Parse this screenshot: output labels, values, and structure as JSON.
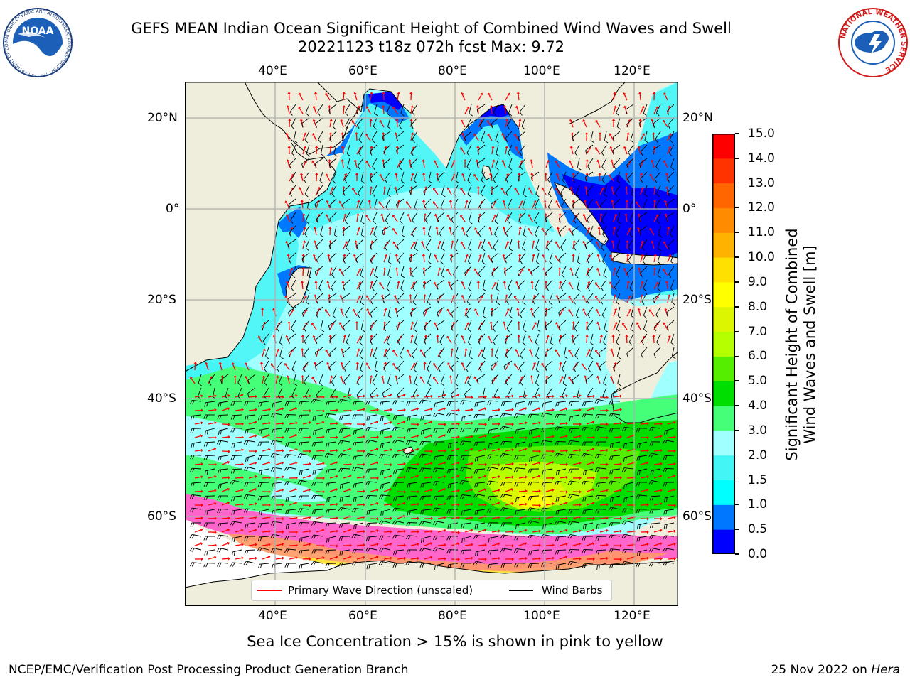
{
  "header": {
    "title_line1": "GEFS MEAN Indian Ocean Significant Height of Combined Wind Waves and Swell",
    "title_line2": "20221123 t18z 072h fcst   Max: 9.72"
  },
  "logos": {
    "noaa": "NOAA",
    "noaa_ring": "NATIONAL OCEANIC AND ATMOSPHERIC ADMINISTRATION · U.S. DEPARTMENT OF COMMERCE ·",
    "nws_ring": "NATIONAL WEATHER SERVICE"
  },
  "map": {
    "lon_ticks": [
      "40°E",
      "60°E",
      "80°E",
      "100°E",
      "120°E"
    ],
    "lat_ticks": [
      "20°N",
      "0°",
      "20°S",
      "40°S",
      "60°S"
    ],
    "legend": {
      "wave_label": "Primary Wave Direction (unscaled)",
      "wave_color": "#ff0000",
      "wind_label": "Wind Barbs",
      "wind_color": "#000000"
    },
    "land_color": "#efeedd",
    "ice_colors": [
      "#ff66cc",
      "#ff9966",
      "#ffee33"
    ]
  },
  "colorbar": {
    "title_line1": "Significant Height of Combined",
    "title_line2": "Wind Waves and Swell [m]",
    "ticks": [
      "0.0",
      "0.5",
      "1.0",
      "1.5",
      "2.0",
      "3.0",
      "4.0",
      "5.0",
      "6.0",
      "7.0",
      "8.0",
      "9.0",
      "10.0",
      "11.0",
      "12.0",
      "13.0",
      "14.0",
      "15.0"
    ],
    "colors": [
      "#0000ff",
      "#0077ff",
      "#00ffff",
      "#44f5f5",
      "#a0ffff",
      "#44ff77",
      "#00dd00",
      "#55ee00",
      "#b6ff00",
      "#dcf500",
      "#ffff00",
      "#ffe000",
      "#ffb300",
      "#ff8c00",
      "#ff6600",
      "#ff3300",
      "#ff0000"
    ]
  },
  "caption": "Sea Ice Concentration > 15% is shown in pink to yellow",
  "footer": {
    "left": "NCEP/EMC/Verification Post Processing Product Generation Branch",
    "right_prefix": "25 Nov 2022 on",
    "right_italic": "Hera"
  }
}
